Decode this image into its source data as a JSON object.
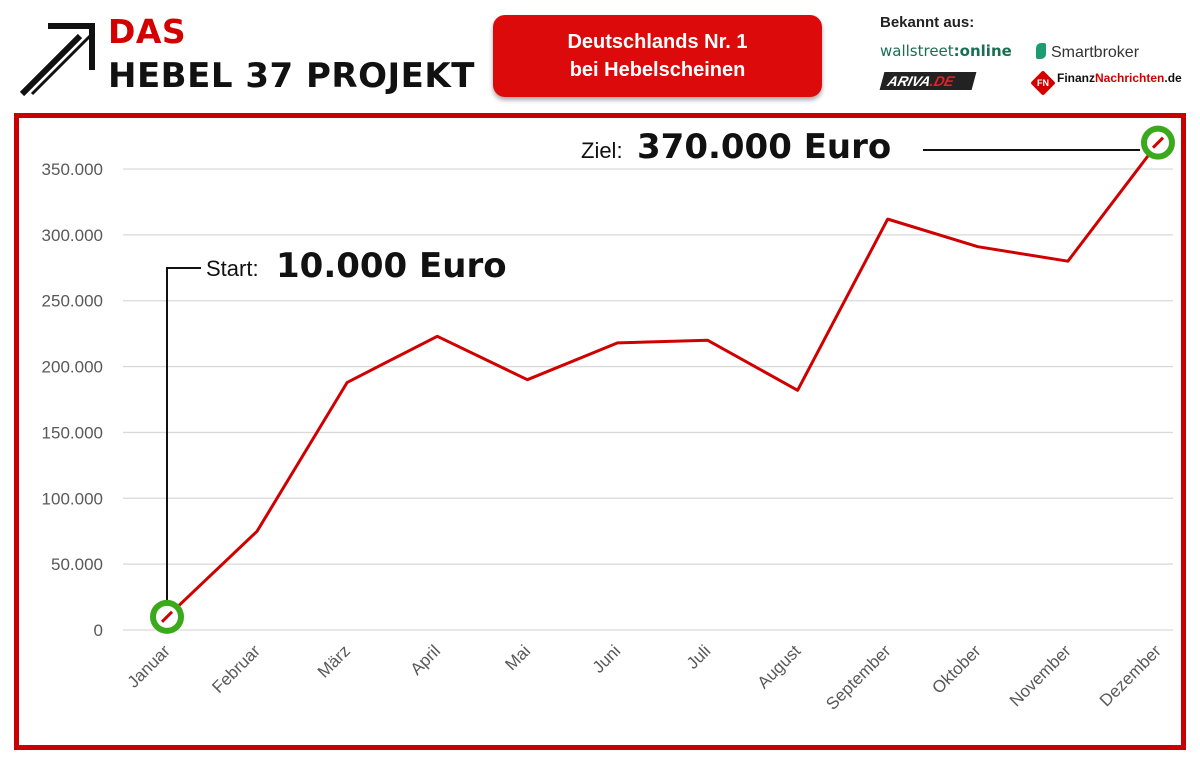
{
  "header": {
    "logo_line1": "DAS",
    "logo_line2": "HEBEL 37 PROJEKT",
    "banner_line1": "Deutschlands Nr. 1",
    "banner_line2": "bei Hebelscheinen",
    "known_from": "Bekannt aus:",
    "press": {
      "wallstreet_a": "wallstreet",
      "wallstreet_b": ":online",
      "smartbroker": "Smartbroker",
      "ariva_a": "ARIVA",
      "ariva_b": ".DE",
      "fn_badge": "FN",
      "fn_a": "Finanz",
      "fn_b": "Nachrichten",
      "fn_c": ".de"
    }
  },
  "annotations": {
    "start_label": "Start:",
    "start_value": "10.000 Euro",
    "goal_label": "Ziel:",
    "goal_value": "370.000 Euro"
  },
  "colors": {
    "brand_red": "#dc0a0a",
    "line": "#d00000",
    "marker": "#3aaa1c",
    "grid": "#d9d9d9",
    "axis_text": "#595959"
  },
  "chart_data": {
    "type": "line",
    "categories": [
      "Januar",
      "Februar",
      "März",
      "April",
      "Mai",
      "Juni",
      "Juli",
      "August",
      "September",
      "Oktober",
      "November",
      "Dezember"
    ],
    "series": [
      {
        "values": [
          10000,
          75000,
          188000,
          223000,
          190000,
          218000,
          220000,
          182000,
          312000,
          291000,
          280000,
          370000
        ]
      }
    ],
    "yticks": [
      "0",
      "50.000",
      "100.000",
      "150.000",
      "200.000",
      "250.000",
      "300.000",
      "350.000"
    ],
    "ytick_values": [
      0,
      50000,
      100000,
      150000,
      200000,
      250000,
      300000,
      350000
    ],
    "ylim": [
      0,
      350000
    ],
    "grid": true,
    "legend": "none"
  }
}
